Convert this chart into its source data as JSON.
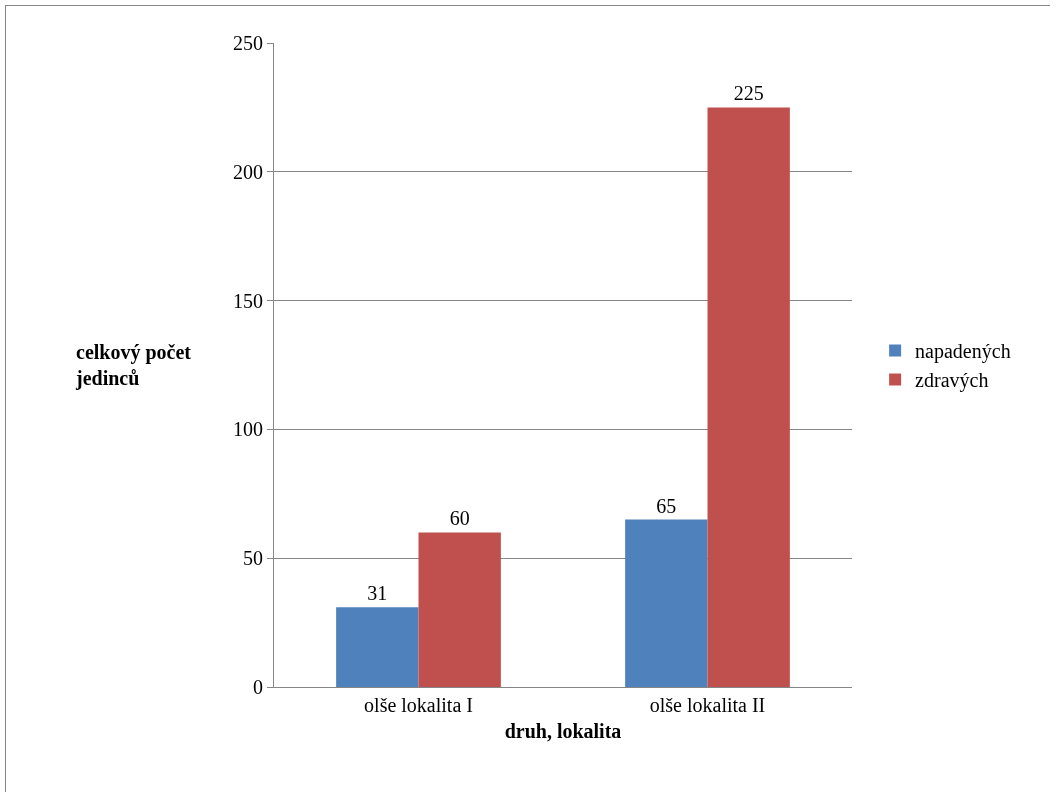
{
  "chart_data": {
    "type": "bar",
    "xlabel": "druh, lokalita",
    "ylabel": "celkový počet jedinců",
    "categories": [
      "olše lokalita I",
      "olše lokalita II"
    ],
    "series": [
      {
        "name": "napadených",
        "color": "#4f81bd",
        "values": [
          31,
          65
        ]
      },
      {
        "name": "zdravých",
        "color": "#c0504d",
        "values": [
          60,
          225
        ]
      }
    ],
    "ylim": [
      0,
      250
    ],
    "yticks": [
      0,
      50,
      100,
      150,
      200,
      250
    ],
    "grid": "y",
    "legend": "right",
    "data_labels": true
  }
}
